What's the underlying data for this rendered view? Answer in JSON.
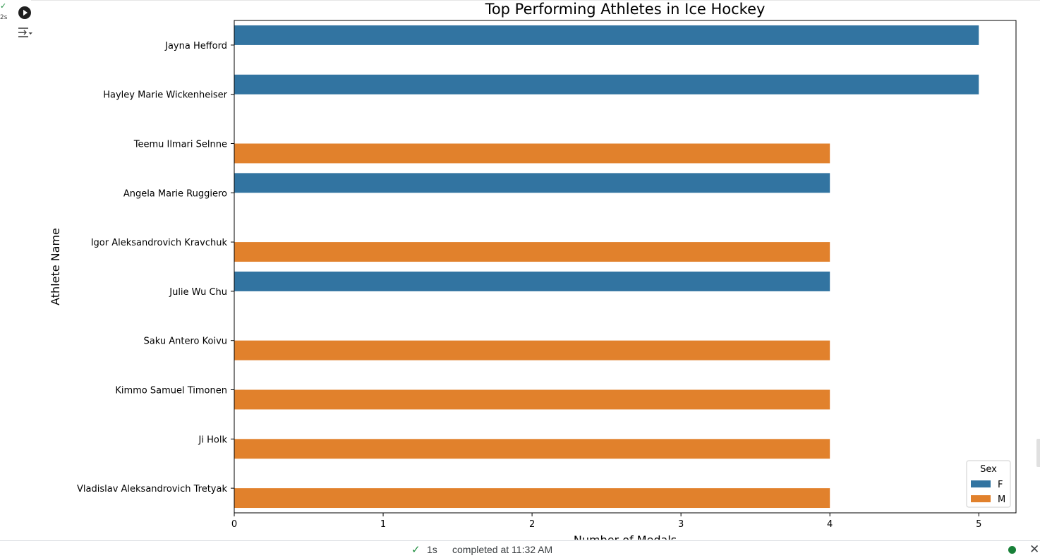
{
  "cell": {
    "exec_check": "✓",
    "exec_time": "2s",
    "run_icon": "play-circle-icon",
    "output_icon": "output-toggle-icon"
  },
  "chart_data": {
    "type": "bar",
    "orientation": "horizontal",
    "title": "Top Performing Athletes in Ice Hockey",
    "xlabel": "Number of Medals",
    "ylabel": "Athlete Name",
    "xlim": [
      0,
      5.25
    ],
    "xticks": [
      0,
      1,
      2,
      3,
      4,
      5
    ],
    "categories": [
      "Jayna Hefford",
      "Hayley Marie Wickenheiser",
      "Teemu Ilmari Selnne",
      "Angela Marie Ruggiero",
      "Igor Aleksandrovich Kravchuk",
      "Julie Wu Chu",
      "Saku Antero Koivu",
      "Kimmo Samuel Timonen",
      "Ji Holk",
      "Vladislav Aleksandrovich Tretyak"
    ],
    "series": [
      {
        "name": "F",
        "color": "#3274a1",
        "values": [
          5,
          5,
          null,
          4,
          null,
          4,
          null,
          null,
          null,
          null
        ]
      },
      {
        "name": "M",
        "color": "#e1812c",
        "values": [
          null,
          null,
          4,
          null,
          4,
          null,
          4,
          4,
          4,
          4
        ]
      }
    ],
    "legend": {
      "title": "Sex",
      "position": "lower-right"
    },
    "grid": false
  },
  "status": {
    "check": "✓",
    "duration": "1s",
    "message": "completed at 11:32 AM",
    "close": "✕"
  }
}
